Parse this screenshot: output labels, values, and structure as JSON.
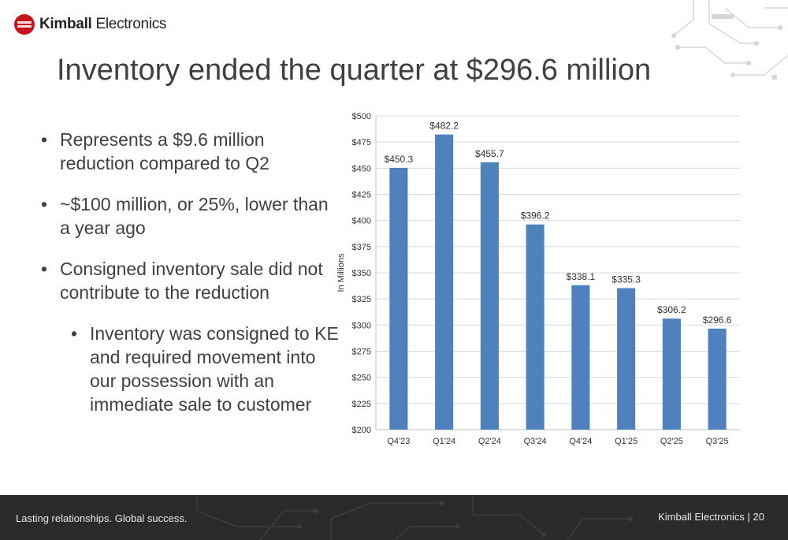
{
  "brand": {
    "name_bold": "Kimball",
    "name_rest": " Electronics"
  },
  "slide": {
    "title": "Inventory ended the quarter at $296.6 million"
  },
  "bullets": [
    {
      "text": "Represents a $9.6 million reduction compared to Q2",
      "level": 1
    },
    {
      "text": "~$100 million, or 25%, lower than a year ago",
      "level": 1
    },
    {
      "text": "Consigned inventory sale did not contribute to the reduction",
      "level": 1
    },
    {
      "text": "Inventory was consigned to KE and required movement into our possession with an immediate sale to customer",
      "level": 2
    }
  ],
  "chart_data": {
    "type": "bar",
    "categories": [
      "Q4'23",
      "Q1'24",
      "Q2'24",
      "Q3'24",
      "Q4'24",
      "Q1'25",
      "Q2'25",
      "Q3'25"
    ],
    "values": [
      450.3,
      482.2,
      455.7,
      396.2,
      338.1,
      335.3,
      306.2,
      296.6
    ],
    "data_labels": [
      "$450.3",
      "$482.2",
      "$455.7",
      "$396.2",
      "$338.1",
      "$335.3",
      "$306.2",
      "$296.6"
    ],
    "ylabel": "In Millions",
    "ylim": [
      200,
      500
    ],
    "yticks": [
      200,
      225,
      250,
      275,
      300,
      325,
      350,
      375,
      400,
      425,
      450,
      475,
      500
    ],
    "ytick_labels": [
      "$200",
      "$225",
      "$250",
      "$275",
      "$300",
      "$325",
      "$350",
      "$375",
      "$400",
      "$425",
      "$450",
      "$475",
      "$500"
    ],
    "grid": true,
    "bar_color": "#4f81bd"
  },
  "footer": {
    "tagline": "Lasting relationships. Global success.",
    "company": "Kimball Electronics",
    "page": "20"
  }
}
